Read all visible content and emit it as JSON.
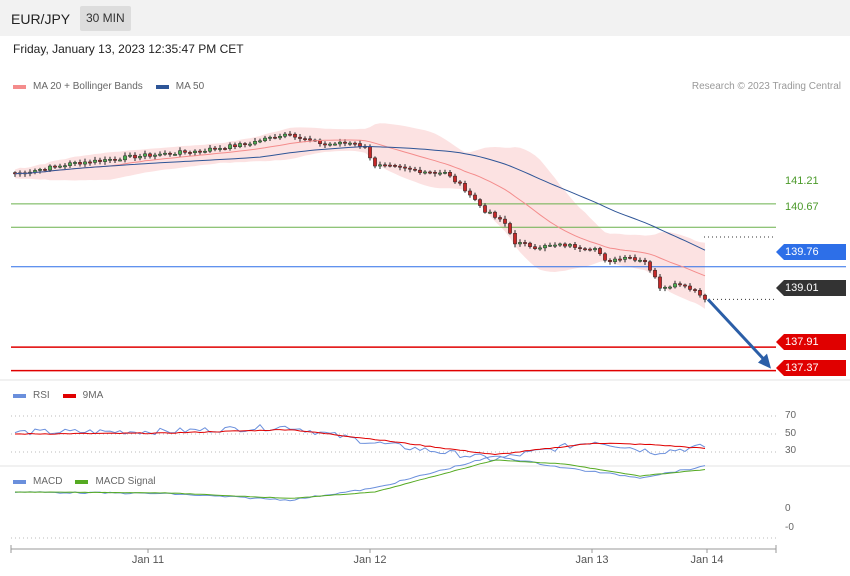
{
  "header": {
    "symbol": "EUR/JPY",
    "timeframe": "30 MIN"
  },
  "datetime": "Friday, January 13, 2023 12:35:47 PM CET",
  "credit": "Research © 2023 Trading Central",
  "colors": {
    "bollinger": "#f48c8c",
    "ma50": "#2e5597",
    "pivot": "#2d6fe8",
    "last": "#333333",
    "target": "#e00000",
    "resistance": "#6ab04c",
    "rsi": "#6a8fdc",
    "rsi_ma": "#e00000",
    "macd": "#6a8fdc",
    "macd_signal": "#55aa22",
    "arrow": "#2b5ea7"
  },
  "legends": {
    "main": [
      {
        "label": "MA 20 + Bollinger Bands",
        "color": "#f48c8c"
      },
      {
        "label": "MA 50",
        "color": "#2e5597"
      }
    ],
    "rsi": [
      {
        "label": "RSI",
        "color": "#6a8fdc"
      },
      {
        "label": "9MA",
        "color": "#e00000"
      }
    ],
    "macd": [
      {
        "label": "MACD",
        "color": "#6a8fdc"
      },
      {
        "label": "MACD Signal",
        "color": "#55aa22"
      }
    ]
  },
  "levels": [
    {
      "value": "141.21",
      "kind": "resistance"
    },
    {
      "value": "140.67",
      "kind": "resistance"
    },
    {
      "value": "139.76",
      "kind": "pivot"
    },
    {
      "value": "139.01",
      "kind": "last"
    },
    {
      "value": "137.91",
      "kind": "target"
    },
    {
      "value": "137.37",
      "kind": "target"
    }
  ],
  "rsi_ticks": [
    "70",
    "50",
    "30"
  ],
  "macd_ticks": [
    "0",
    "-0"
  ],
  "time_labels": [
    "Jan 11",
    "Jan 12",
    "Jan 13",
    "Jan 14"
  ],
  "chart_data": {
    "type": "candlestick",
    "title": "EUR/JPY",
    "timeframe": "30 MIN",
    "y_range": [
      137.2,
      143.6
    ],
    "x_labels": [
      "Jan 11",
      "Jan 12",
      "Jan 13",
      "Jan 14"
    ],
    "close_path": [
      {
        "t": 0,
        "c": 141.9
      },
      {
        "t": 12,
        "c": 142.15
      },
      {
        "t": 24,
        "c": 142.3
      },
      {
        "t": 36,
        "c": 142.42
      },
      {
        "t": 46,
        "c": 142.58
      },
      {
        "t": 55,
        "c": 142.85
      },
      {
        "t": 57,
        "c": 142.72
      },
      {
        "t": 62,
        "c": 142.58
      },
      {
        "t": 68,
        "c": 142.62
      },
      {
        "t": 70,
        "c": 142.5
      },
      {
        "t": 72,
        "c": 142.1
      },
      {
        "t": 80,
        "c": 141.98
      },
      {
        "t": 86,
        "c": 141.92
      },
      {
        "t": 90,
        "c": 141.55
      },
      {
        "t": 94,
        "c": 141.05
      },
      {
        "t": 98,
        "c": 140.75
      },
      {
        "t": 100,
        "c": 140.32
      },
      {
        "t": 104,
        "c": 140.22
      },
      {
        "t": 110,
        "c": 140.26
      },
      {
        "t": 116,
        "c": 140.18
      },
      {
        "t": 118,
        "c": 139.88
      },
      {
        "t": 122,
        "c": 140.0
      },
      {
        "t": 126,
        "c": 139.9
      },
      {
        "t": 129,
        "c": 139.3
      },
      {
        "t": 133,
        "c": 139.38
      },
      {
        "t": 136,
        "c": 139.22
      },
      {
        "t": 138,
        "c": 139.01
      }
    ],
    "indicators": {
      "rsi_range": [
        0,
        100
      ],
      "rsi_levels": [
        70,
        50,
        30
      ],
      "rsi": [
        {
          "t": 0,
          "v": 52
        },
        {
          "t": 30,
          "v": 53
        },
        {
          "t": 55,
          "v": 58
        },
        {
          "t": 72,
          "v": 40
        },
        {
          "t": 96,
          "v": 22
        },
        {
          "t": 116,
          "v": 42
        },
        {
          "t": 128,
          "v": 30
        },
        {
          "t": 138,
          "v": 36
        }
      ],
      "rsi_ma": [
        {
          "t": 0,
          "v": 50
        },
        {
          "t": 30,
          "v": 51
        },
        {
          "t": 55,
          "v": 55
        },
        {
          "t": 72,
          "v": 44
        },
        {
          "t": 96,
          "v": 27
        },
        {
          "t": 116,
          "v": 40
        },
        {
          "t": 128,
          "v": 38
        },
        {
          "t": 138,
          "v": 34
        }
      ],
      "macd": [
        {
          "t": 0,
          "v": 0.0
        },
        {
          "t": 30,
          "v": 0.02
        },
        {
          "t": 55,
          "v": 0.1
        },
        {
          "t": 72,
          "v": -0.05
        },
        {
          "t": 96,
          "v": -0.45
        },
        {
          "t": 110,
          "v": -0.3
        },
        {
          "t": 125,
          "v": -0.18
        },
        {
          "t": 138,
          "v": -0.32
        }
      ],
      "macd_signal": [
        {
          "t": 0,
          "v": 0.0
        },
        {
          "t": 30,
          "v": 0.01
        },
        {
          "t": 55,
          "v": 0.08
        },
        {
          "t": 72,
          "v": 0.0
        },
        {
          "t": 96,
          "v": -0.4
        },
        {
          "t": 110,
          "v": -0.35
        },
        {
          "t": 125,
          "v": -0.2
        },
        {
          "t": 138,
          "v": -0.28
        }
      ]
    }
  }
}
